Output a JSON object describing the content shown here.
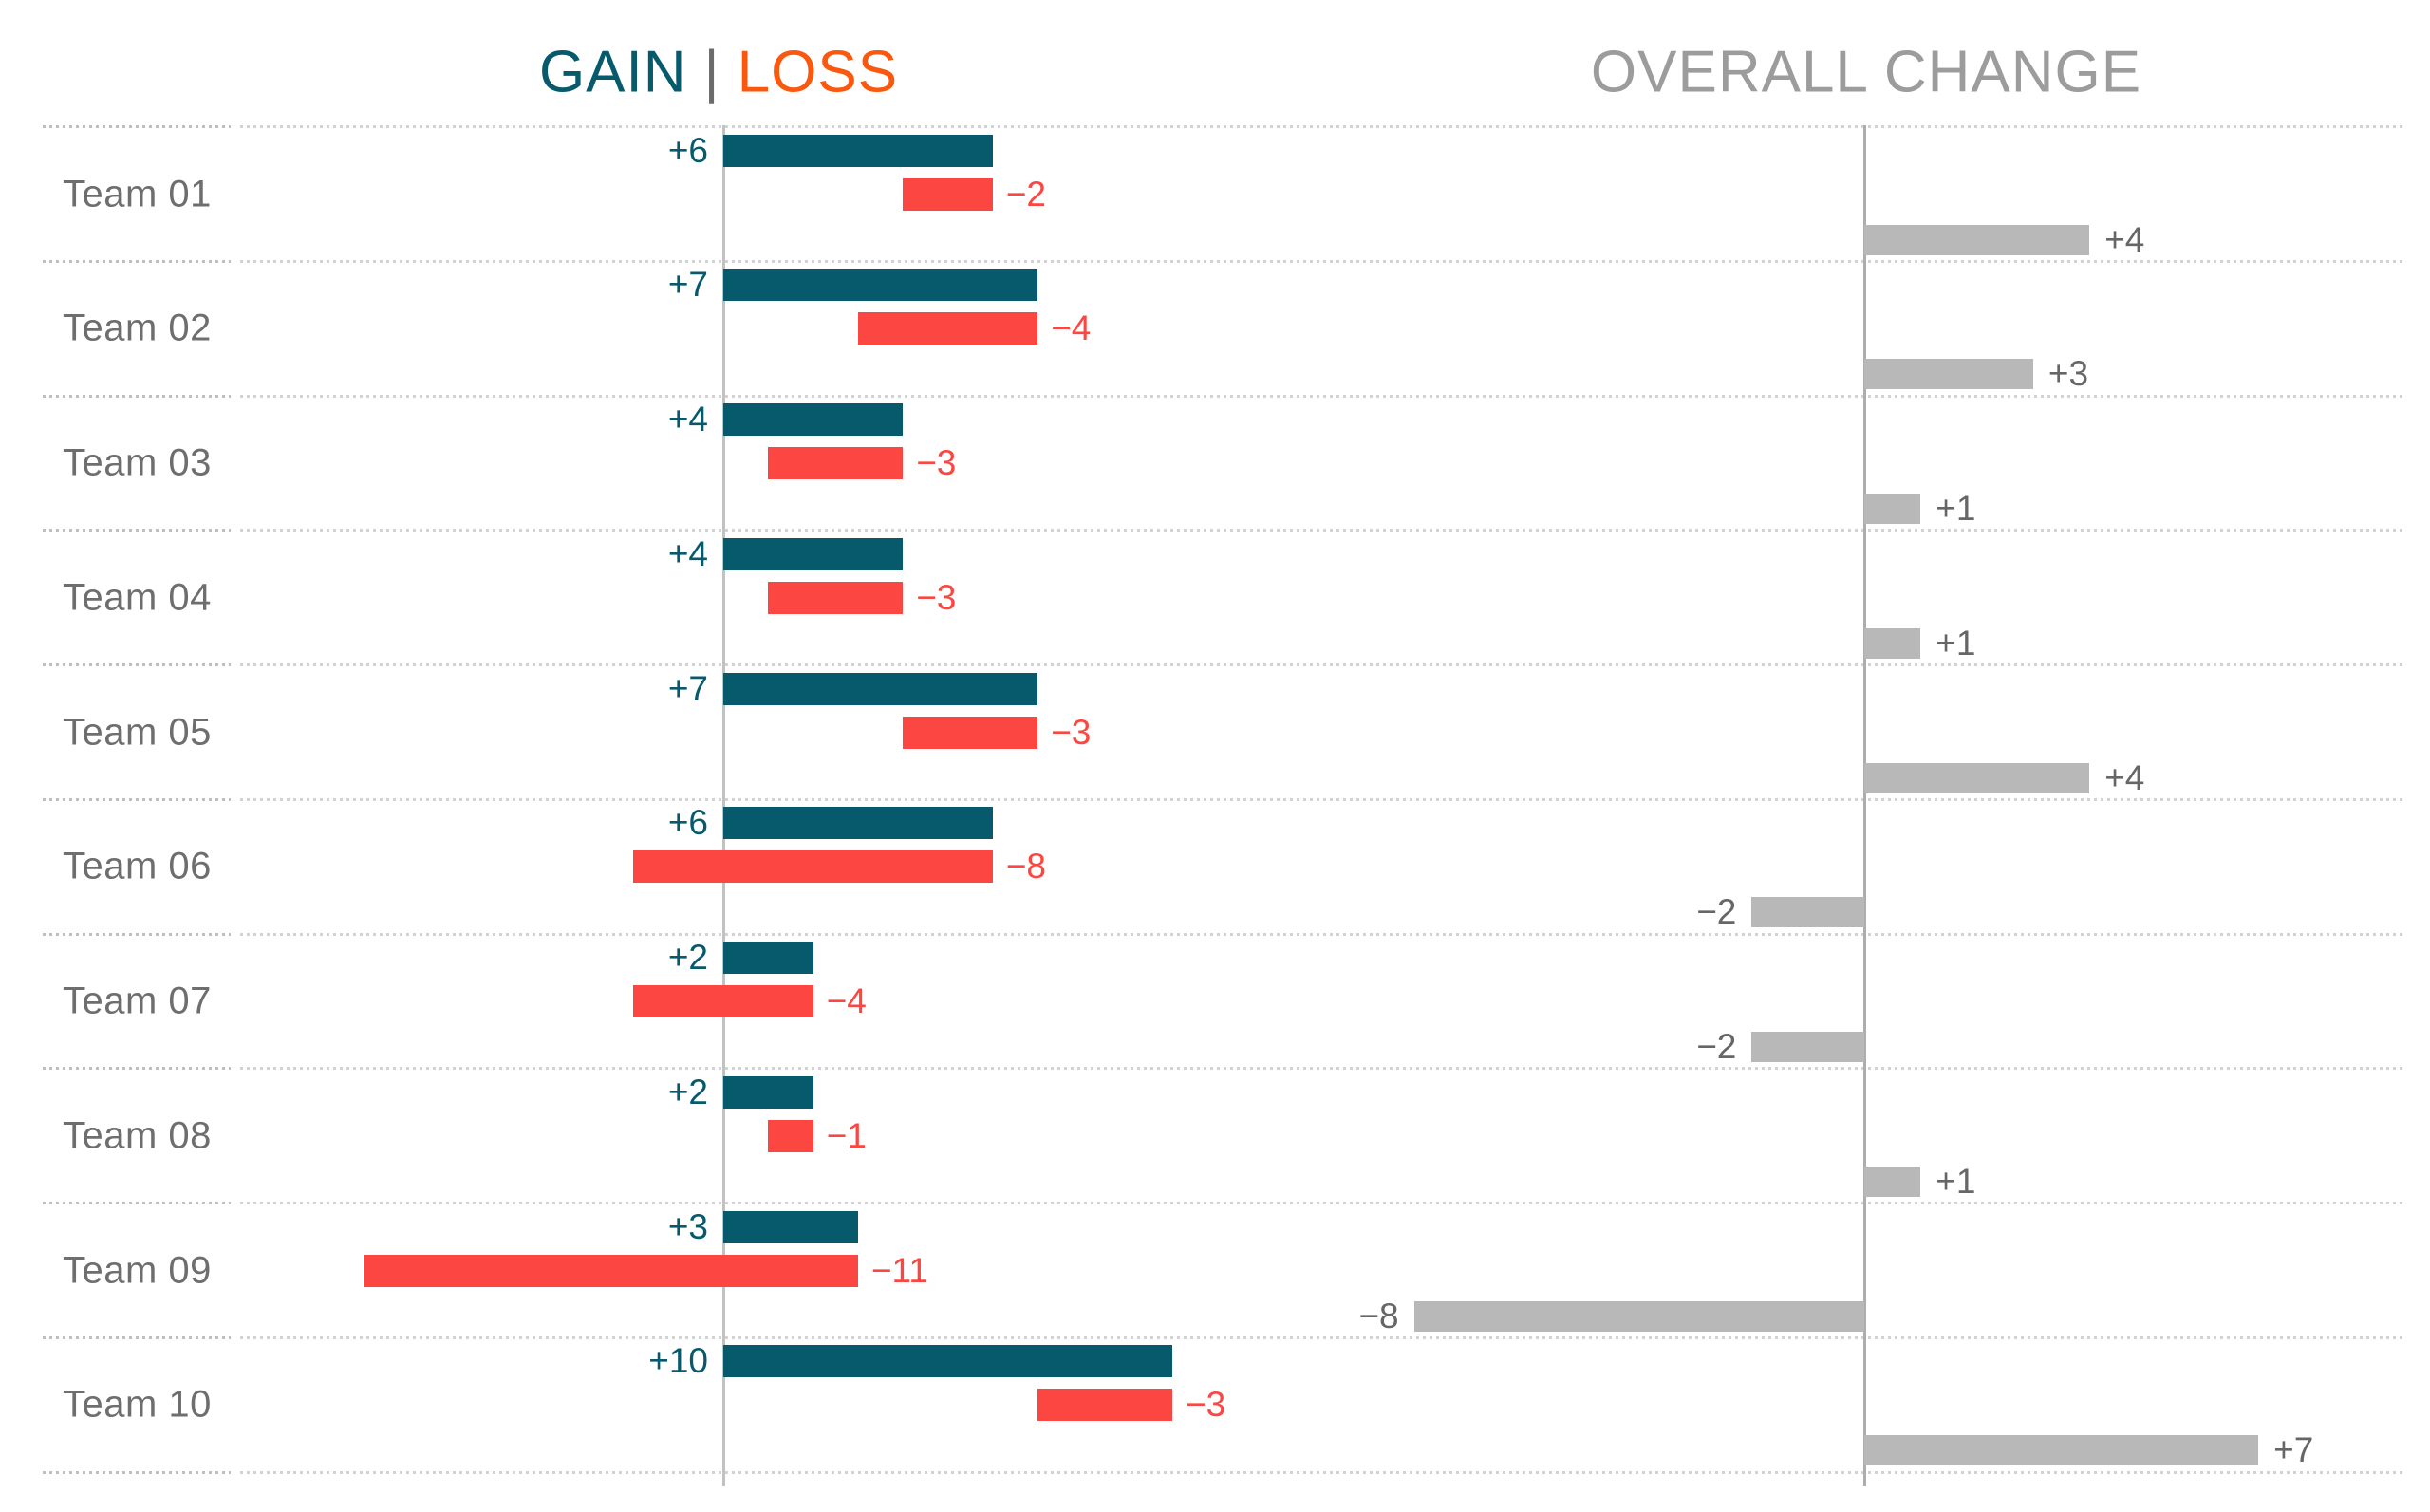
{
  "header": {
    "gain_label": "GAIN",
    "divider": "|",
    "loss_label": "LOSS",
    "overall_label": "OVERALL CHANGE"
  },
  "colors": {
    "gain": "#075a6c",
    "loss_bar": "#fb4642",
    "loss_header": "#fa580f",
    "overall_bar": "#b8b8b8",
    "overall_text": "#666666",
    "team_text": "#6e6e6e",
    "header_gray": "#9c9c9c",
    "divider_gray": "#6b6b6b",
    "axis_left": "#c2c2c2",
    "axis_right": "#adadad",
    "grid_left_segment": "#bfbfbf",
    "grid_main": "#d2d2d2",
    "background": "#ffffff"
  },
  "chart_data": {
    "type": "bar",
    "variant": "diverging-gain-loss-with-overall-change",
    "title_left": "GAIN | LOSS",
    "title_right": "OVERALL CHANGE",
    "grid": "dotted-row-separators",
    "loss_bar_anchor": "right_edge_of_gain_bar",
    "overall_bar_anchor": "overall_axis_baseline",
    "categories": [
      "Team 01",
      "Team 02",
      "Team 03",
      "Team 04",
      "Team 05",
      "Team 06",
      "Team 07",
      "Team 08",
      "Team 09",
      "Team 10"
    ],
    "series": [
      {
        "name": "Gain",
        "values": [
          6,
          7,
          4,
          4,
          7,
          6,
          2,
          2,
          3,
          10
        ]
      },
      {
        "name": "Loss",
        "values": [
          -2,
          -4,
          -3,
          -3,
          -3,
          -8,
          -4,
          -1,
          -11,
          -3
        ]
      },
      {
        "name": "Overall Change",
        "values": [
          4,
          3,
          1,
          1,
          4,
          -2,
          -2,
          1,
          -8,
          7
        ]
      }
    ],
    "teams": [
      {
        "label": "Team 01",
        "gain": 6,
        "loss": 2,
        "overall": 4,
        "gain_label": "+6",
        "loss_label": "−2",
        "overall_label": "+4"
      },
      {
        "label": "Team 02",
        "gain": 7,
        "loss": 4,
        "overall": 3,
        "gain_label": "+7",
        "loss_label": "−4",
        "overall_label": "+3"
      },
      {
        "label": "Team 03",
        "gain": 4,
        "loss": 3,
        "overall": 1,
        "gain_label": "+4",
        "loss_label": "−3",
        "overall_label": "+1"
      },
      {
        "label": "Team 04",
        "gain": 4,
        "loss": 3,
        "overall": 1,
        "gain_label": "+4",
        "loss_label": "−3",
        "overall_label": "+1"
      },
      {
        "label": "Team 05",
        "gain": 7,
        "loss": 3,
        "overall": 4,
        "gain_label": "+7",
        "loss_label": "−3",
        "overall_label": "+4"
      },
      {
        "label": "Team 06",
        "gain": 6,
        "loss": 8,
        "overall": -2,
        "gain_label": "+6",
        "loss_label": "−8",
        "overall_label": "−2"
      },
      {
        "label": "Team 07",
        "gain": 2,
        "loss": 4,
        "overall": -2,
        "gain_label": "+2",
        "loss_label": "−4",
        "overall_label": "−2"
      },
      {
        "label": "Team 08",
        "gain": 2,
        "loss": 1,
        "overall": 1,
        "gain_label": "+2",
        "loss_label": "−1",
        "overall_label": "+1"
      },
      {
        "label": "Team 09",
        "gain": 3,
        "loss": 11,
        "overall": -8,
        "gain_label": "+3",
        "loss_label": "−11",
        "overall_label": "−8"
      },
      {
        "label": "Team 10",
        "gain": 10,
        "loss": 3,
        "overall": 7,
        "gain_label": "+10",
        "loss_label": "−3",
        "overall_label": "+7"
      }
    ]
  }
}
